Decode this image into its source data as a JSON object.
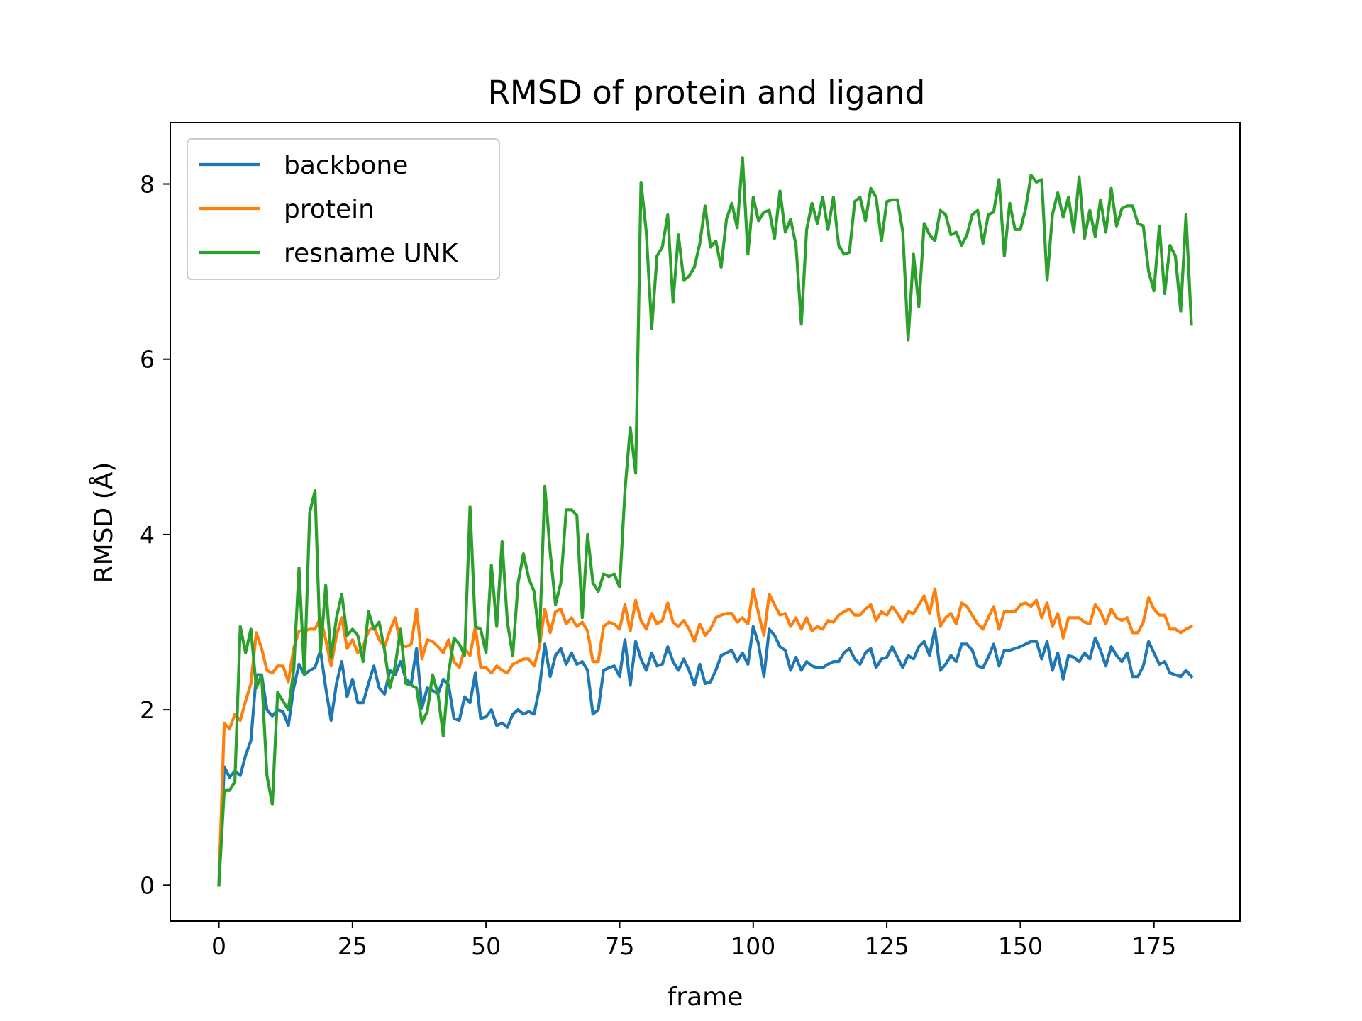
{
  "chart_data": {
    "type": "line",
    "title": "RMSD of protein and ligand",
    "xlabel": "frame",
    "ylabel": "RMSD (Å)",
    "xlim": [
      -9.1,
      191.1
    ],
    "ylim": [
      -0.41,
      8.7
    ],
    "xticks": [
      0,
      25,
      50,
      75,
      100,
      125,
      150,
      175
    ],
    "yticks": [
      0,
      2,
      4,
      6,
      8
    ],
    "grid": false,
    "legend_position": "upper left",
    "series": [
      {
        "name": "backbone",
        "color": "#1f77b4",
        "values": [
          0.0,
          1.35,
          1.23,
          1.3,
          1.25,
          1.48,
          1.65,
          2.4,
          2.4,
          2.0,
          1.93,
          2.0,
          1.98,
          1.82,
          2.25,
          2.52,
          2.4,
          2.45,
          2.48,
          2.68,
          2.25,
          1.88,
          2.3,
          2.55,
          2.15,
          2.35,
          2.08,
          2.08,
          2.3,
          2.5,
          2.25,
          2.18,
          2.45,
          2.4,
          2.55,
          2.35,
          2.3,
          2.7,
          2.02,
          2.25,
          2.22,
          2.18,
          2.35,
          2.28,
          1.9,
          1.88,
          2.15,
          2.08,
          2.42,
          1.9,
          1.92,
          2.0,
          1.82,
          1.85,
          1.8,
          1.95,
          2.0,
          1.95,
          1.98,
          1.95,
          2.25,
          2.75,
          2.38,
          2.62,
          2.7,
          2.52,
          2.65,
          2.52,
          2.55,
          2.45,
          1.95,
          2.0,
          2.45,
          2.48,
          2.5,
          2.38,
          2.8,
          2.28,
          2.78,
          2.58,
          2.45,
          2.65,
          2.5,
          2.52,
          2.72,
          2.55,
          2.45,
          2.58,
          2.45,
          2.28,
          2.52,
          2.3,
          2.32,
          2.45,
          2.62,
          2.65,
          2.68,
          2.55,
          2.65,
          2.52,
          2.95,
          2.75,
          2.38,
          2.92,
          2.85,
          2.72,
          2.68,
          2.45,
          2.6,
          2.45,
          2.55,
          2.5,
          2.48,
          2.48,
          2.52,
          2.55,
          2.55,
          2.65,
          2.7,
          2.58,
          2.52,
          2.65,
          2.7,
          2.48,
          2.58,
          2.6,
          2.72,
          2.6,
          2.48,
          2.62,
          2.58,
          2.72,
          2.78,
          2.62,
          2.92,
          2.45,
          2.52,
          2.62,
          2.55,
          2.75,
          2.75,
          2.68,
          2.5,
          2.48,
          2.6,
          2.75,
          2.5,
          2.68,
          2.68,
          2.7,
          2.72,
          2.75,
          2.78,
          2.78,
          2.58,
          2.78,
          2.45,
          2.65,
          2.35,
          2.62,
          2.6,
          2.55,
          2.65,
          2.58,
          2.82,
          2.68,
          2.5,
          2.72,
          2.62,
          2.55,
          2.65,
          2.38,
          2.38,
          2.5,
          2.78,
          2.65,
          2.52,
          2.55,
          2.42,
          2.4,
          2.38,
          2.45,
          2.38
        ]
      },
      {
        "name": "protein",
        "color": "#ff7f0e",
        "values": [
          0.0,
          1.85,
          1.78,
          1.95,
          1.88,
          2.1,
          2.3,
          2.88,
          2.7,
          2.45,
          2.42,
          2.5,
          2.5,
          2.32,
          2.7,
          2.9,
          2.9,
          2.92,
          2.92,
          3.05,
          2.8,
          2.5,
          2.85,
          3.05,
          2.7,
          2.8,
          2.65,
          2.72,
          2.9,
          2.95,
          2.8,
          2.72,
          2.9,
          3.05,
          2.75,
          2.72,
          2.75,
          3.15,
          2.58,
          2.8,
          2.78,
          2.72,
          2.65,
          2.8,
          2.55,
          2.48,
          2.7,
          2.62,
          2.95,
          2.48,
          2.48,
          2.42,
          2.5,
          2.45,
          2.42,
          2.52,
          2.55,
          2.58,
          2.58,
          2.5,
          2.72,
          3.15,
          2.88,
          3.12,
          3.15,
          2.98,
          3.05,
          2.95,
          3.0,
          2.9,
          2.55,
          2.55,
          2.95,
          3.0,
          2.98,
          2.92,
          3.2,
          2.9,
          3.25,
          3.02,
          2.92,
          3.1,
          2.98,
          3.02,
          3.22,
          3.0,
          2.95,
          3.02,
          2.92,
          2.78,
          2.98,
          2.85,
          2.92,
          3.05,
          3.08,
          3.1,
          3.1,
          3.0,
          3.05,
          2.98,
          3.38,
          3.1,
          2.85,
          3.32,
          3.2,
          3.08,
          3.1,
          2.95,
          3.05,
          2.92,
          3.05,
          2.9,
          2.95,
          2.92,
          3.02,
          3.0,
          3.08,
          3.12,
          3.15,
          3.08,
          3.08,
          3.15,
          3.2,
          3.02,
          3.12,
          3.08,
          3.18,
          3.1,
          3.0,
          3.12,
          3.1,
          3.2,
          3.3,
          3.1,
          3.38,
          2.95,
          3.05,
          3.1,
          2.98,
          3.22,
          3.18,
          3.08,
          2.98,
          2.92,
          3.05,
          3.18,
          2.92,
          3.12,
          3.12,
          3.12,
          3.2,
          3.22,
          3.18,
          3.25,
          3.05,
          3.22,
          2.95,
          3.1,
          2.82,
          3.05,
          3.05,
          3.05,
          3.0,
          2.98,
          3.2,
          3.12,
          2.98,
          3.15,
          3.05,
          3.02,
          3.05,
          2.88,
          2.88,
          3.0,
          3.28,
          3.15,
          3.08,
          3.08,
          2.92,
          2.92,
          2.88,
          2.92,
          2.95
        ]
      },
      {
        "name": "resname UNK",
        "color": "#2ca02c",
        "values": [
          0.0,
          1.08,
          1.08,
          1.18,
          2.95,
          2.65,
          2.92,
          2.25,
          2.4,
          1.25,
          0.92,
          2.2,
          2.1,
          2.0,
          2.45,
          3.62,
          2.4,
          4.25,
          4.5,
          2.65,
          3.42,
          2.6,
          3.05,
          3.32,
          2.85,
          2.92,
          2.85,
          2.55,
          3.12,
          2.92,
          3.0,
          2.68,
          2.25,
          2.5,
          2.92,
          2.3,
          2.28,
          2.25,
          1.85,
          1.98,
          2.4,
          2.18,
          1.7,
          2.42,
          2.82,
          2.75,
          2.62,
          4.32,
          2.95,
          2.92,
          2.65,
          3.65,
          2.95,
          3.92,
          3.0,
          2.62,
          3.45,
          3.78,
          3.5,
          3.35,
          2.78,
          4.55,
          3.8,
          3.2,
          3.45,
          4.28,
          4.28,
          4.22,
          3.05,
          4.0,
          3.45,
          3.35,
          3.55,
          3.52,
          3.55,
          3.4,
          4.5,
          5.22,
          4.7,
          8.02,
          7.45,
          6.35,
          7.18,
          7.28,
          7.65,
          6.65,
          7.42,
          6.9,
          6.95,
          7.05,
          7.32,
          7.75,
          7.28,
          7.35,
          7.05,
          7.6,
          7.78,
          7.5,
          8.3,
          7.2,
          7.85,
          7.58,
          7.68,
          7.7,
          7.38,
          7.92,
          7.45,
          7.6,
          7.3,
          6.4,
          7.48,
          7.78,
          7.55,
          7.85,
          7.48,
          7.85,
          7.3,
          7.2,
          7.22,
          7.8,
          7.85,
          7.58,
          7.95,
          7.85,
          7.35,
          7.8,
          7.82,
          7.82,
          7.45,
          6.22,
          7.2,
          6.6,
          7.55,
          7.42,
          7.35,
          7.7,
          7.65,
          7.42,
          7.45,
          7.3,
          7.42,
          7.65,
          7.7,
          7.32,
          7.65,
          7.68,
          8.05,
          7.18,
          7.78,
          7.48,
          7.48,
          7.72,
          8.1,
          8.02,
          8.05,
          6.9,
          7.65,
          7.9,
          7.62,
          7.85,
          7.45,
          8.08,
          7.38,
          7.7,
          7.4,
          7.82,
          7.45,
          7.95,
          7.52,
          7.72,
          7.75,
          7.75,
          7.55,
          7.52,
          7.0,
          6.78,
          7.52,
          6.75,
          7.3,
          7.18,
          6.55,
          7.65,
          6.4
        ]
      }
    ]
  }
}
